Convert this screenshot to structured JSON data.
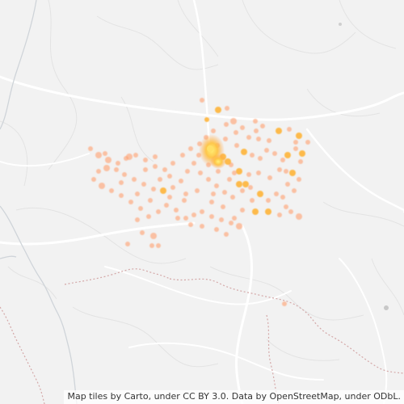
{
  "map": {
    "attribution": "Map tiles by Carto, under CC BY 3.0. Data by OpenStreetMap, under ODbL.",
    "colors": {
      "land": "#f2f2f2",
      "roads": "#ffffff",
      "minor_lines": "#e2e2e2",
      "rivers": "#cdd3d8",
      "border": "#d2a7a7",
      "heat_low": "#ff9f6e",
      "heat_mid": "#ffb030",
      "heat_high": "#ffe066"
    }
  }
}
